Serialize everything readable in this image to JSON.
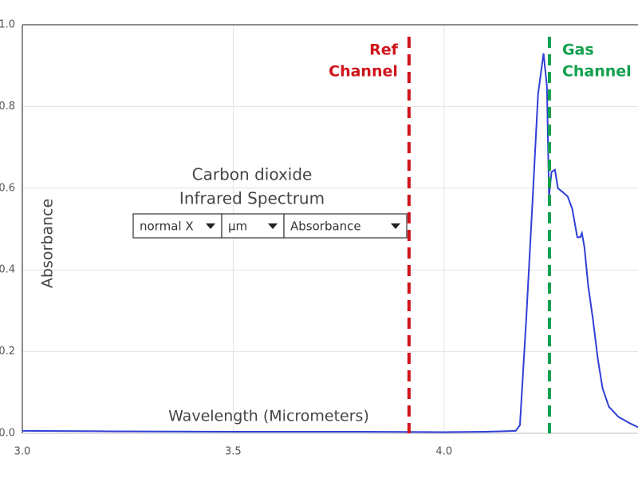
{
  "chart_data": {
    "type": "line",
    "title_lines": [
      "Carbon dioxide",
      "Infrared Spectrum"
    ],
    "x_label": "Wavelength (Micrometers)",
    "y_label": "Absorbance",
    "controls": [
      "normal X",
      "µm",
      "Absorbance"
    ],
    "xlim": [
      3.0,
      4.46
    ],
    "ylim": [
      0,
      1
    ],
    "xticks": [
      {
        "value": 3,
        "label": "3.0"
      },
      3.5,
      {
        "value": 4,
        "label": "4.0"
      }
    ],
    "yticks": [
      {
        "value": 1,
        "label": "1.0"
      },
      0.8,
      0.6,
      0.4,
      0.2,
      {
        "value": 0,
        "label": "0.0"
      }
    ],
    "grid": true,
    "series": [
      {
        "color": "#2f3fd6",
        "x": [
          3.0,
          3.2,
          3.5,
          3.8,
          4.0,
          4.1,
          4.17,
          4.18,
          4.195,
          4.21,
          4.223,
          4.236,
          4.244,
          4.249,
          4.255,
          4.263,
          4.27,
          4.282,
          4.293,
          4.304,
          4.316,
          4.323,
          4.327,
          4.333,
          4.342,
          4.353,
          4.365,
          4.376,
          4.391,
          4.414,
          4.44,
          4.46
        ],
        "values": [
          0.006,
          0.005,
          0.004,
          0.004,
          0.003,
          0.004,
          0.006,
          0.02,
          0.28,
          0.57,
          0.83,
          0.93,
          0.85,
          0.58,
          0.64,
          0.645,
          0.6,
          0.59,
          0.58,
          0.55,
          0.48,
          0.48,
          0.49,
          0.455,
          0.36,
          0.28,
          0.18,
          0.11,
          0.065,
          0.04,
          0.025,
          0.015
        ]
      }
    ],
    "annotations": [
      {
        "lines": [
          "Ref",
          "Channel"
        ],
        "x": 3.917,
        "color": "#d0141c",
        "side": "left"
      },
      {
        "lines": [
          "Gas",
          "Channel"
        ],
        "x": 4.25,
        "color": "#12a04e",
        "side": "right"
      }
    ]
  }
}
